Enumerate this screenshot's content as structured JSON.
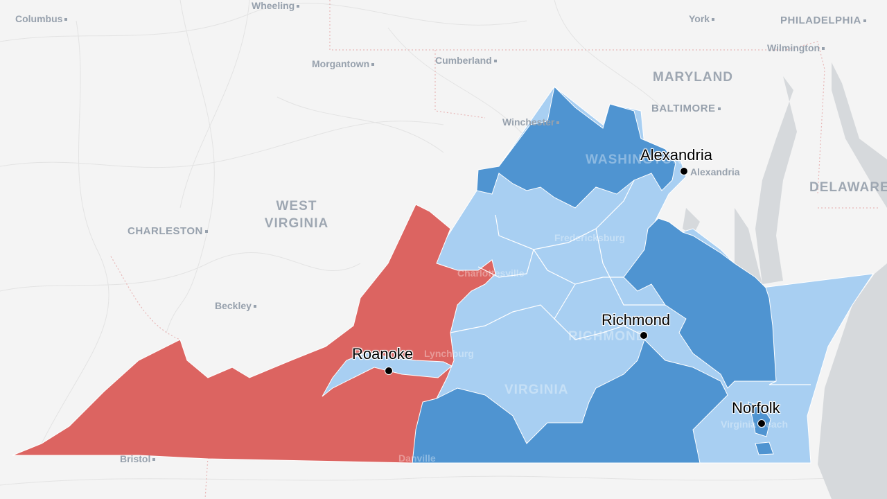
{
  "map": {
    "colors": {
      "republican": "#dc6461",
      "democrat_strong": "#4f94d1",
      "democrat_lean": "#a8cff2",
      "background": "#f4f4f4",
      "water": "#d6d9dc"
    },
    "basemap_labels": [
      "Columbus",
      "Wheeling",
      "Morgantown",
      "Cumberland",
      "York",
      "PHILADELPHIA",
      "Wilmington",
      "BALTIMORE",
      "Winchester",
      "Alexandria",
      "CHARLESTON",
      "Beckley",
      "Bristol"
    ],
    "state_labels": [
      "WEST VIRGINIA",
      "MARYLAND",
      "DELAWARE"
    ],
    "obscured_labels": [
      "WASHINGTON",
      "Fredericksburg",
      "Charlottesville",
      "Lynchburg",
      "RICHMOND",
      "VIRGINIA",
      "Virginia Beach",
      "Danville"
    ],
    "cities": [
      {
        "name": "Alexandria"
      },
      {
        "name": "Richmond"
      },
      {
        "name": "Roanoke"
      },
      {
        "name": "Norfolk"
      }
    ]
  }
}
